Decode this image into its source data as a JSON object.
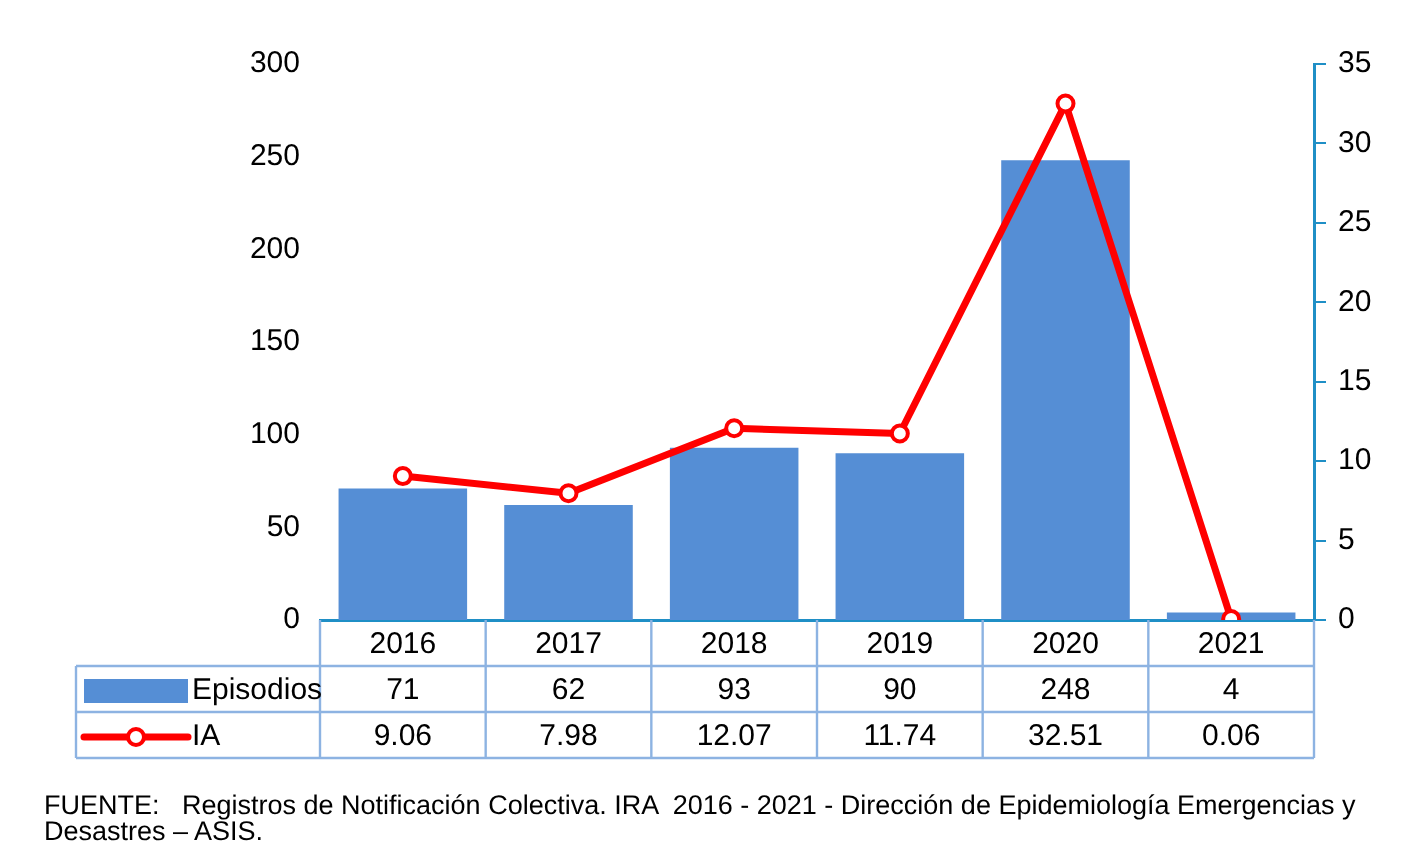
{
  "chart_data": {
    "type": "bar",
    "categories": [
      "2016",
      "2017",
      "2018",
      "2019",
      "2020",
      "2021"
    ],
    "series": [
      {
        "name": "Episodios",
        "color": "#558ed5",
        "values": [
          71,
          62,
          93,
          90,
          248,
          4
        ]
      },
      {
        "name": "IA",
        "type": "line",
        "axis": "y2",
        "color": "#ff0000",
        "marker": "circle",
        "values": [
          9.06,
          7.98,
          12.07,
          11.74,
          32.51,
          0.06
        ]
      }
    ],
    "ylim": [
      0,
      300
    ],
    "yticks": [
      0,
      50,
      100,
      150,
      200,
      250,
      300
    ],
    "y2lim": [
      0,
      35
    ],
    "y2ticks": [
      0,
      5,
      10,
      15,
      20,
      25,
      30,
      35
    ],
    "grid": false,
    "legend": "bottom left",
    "data_labels": true,
    "annotations": [
      "FUENTE:   Registros de Notificación Colectiva. IRA  2016 - 2021 - Dirección de Epidemiología Emergencias y Desastres – ASIS."
    ]
  }
}
